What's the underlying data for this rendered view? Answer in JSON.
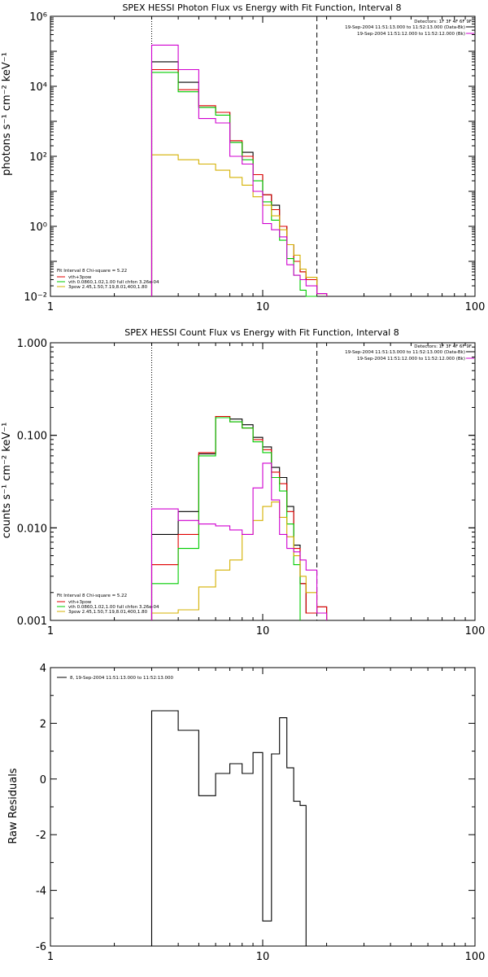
{
  "charts": [
    {
      "title": "SPEX HESSI Photon Flux vs Energy with Fit Function, Interval 8",
      "ylabel": "photons s⁻¹ cm⁻² keV⁻¹",
      "xticks": [
        "1",
        "10",
        "100"
      ],
      "yticks": [
        "10⁻²",
        "10⁰",
        "10²",
        "10⁴",
        "10⁶"
      ],
      "header": [
        "Detectors: 1F 3F 4F 6F 9F",
        "19-Sep-2004 11:51:13.000 to 11:52:13.000 (Data-Bk)",
        "19-Sep-2004 11:51:12.000 to 11:52:12.000 (Bk)"
      ],
      "legend": [
        "Fit Interval 8   Chi-square = 5.22",
        "vth+3pow",
        "vth 0.0860,1.02,1.00  full chfon 3.26e-04",
        "3pow 2.45,1.50,7.19,8.01,400,1.80"
      ]
    },
    {
      "title": "SPEX HESSI Count Flux vs Energy with Fit Function, Interval 8",
      "ylabel": "counts s⁻¹ cm⁻² keV⁻¹",
      "xticks": [
        "1",
        "10",
        "100"
      ],
      "yticks": [
        "0.001",
        "0.010",
        "0.100",
        "1.000"
      ],
      "header": [
        "Detectors: 1F 3F 4F 6F 9F",
        "19-Sep-2004 11:51:13.000 to 11:52:13.000 (Data-Bk)",
        "19-Sep-2004 11:51:12.000 to 11:52:12.000 (Bk)"
      ],
      "legend": [
        "Fit Interval 8   Chi-square = 5.22",
        "vth+3pow",
        "vth 0.0860,1.02,1.00  full chfon 3.26e-04",
        "3pow 2.45,1.50,7.19,8.01,400,1.80"
      ]
    },
    {
      "title": "",
      "ylabel": "Raw Residuals",
      "xticks": [
        "1",
        "10",
        "100"
      ],
      "yticks": [
        "-6",
        "-4",
        "-2",
        "0",
        "2",
        "4"
      ],
      "legend": [
        "8, 19-Sep-2004 11:51:13.000 to 11:52:13.000"
      ]
    }
  ],
  "colors": {
    "data": "#000000",
    "total": "#e00000",
    "thermal": "#00cc00",
    "nonthermal": "#d4b000",
    "background": "#d000d0"
  },
  "chart_data": [
    {
      "type": "line",
      "xscale": "log",
      "yscale": "log",
      "xlim": [
        1,
        100
      ],
      "ylim": [
        0.01,
        1000000
      ],
      "vlines": [
        {
          "x": 3,
          "style": "dotted"
        },
        {
          "x": 18,
          "style": "dashed"
        }
      ],
      "x_edges": [
        3,
        4,
        5,
        6,
        7,
        8,
        9,
        10,
        11,
        12,
        13,
        14,
        15,
        16,
        18,
        20
      ],
      "series": [
        {
          "name": "data",
          "color": "#000000",
          "values": [
            50000,
            13000,
            2500,
            1800,
            250,
            130,
            30,
            8,
            4,
            1,
            0.3,
            0.1,
            0.05,
            0.03,
            0.012
          ]
        },
        {
          "name": "vth+3pow",
          "color": "#e00000",
          "values": [
            30000,
            8000,
            2800,
            1800,
            280,
            100,
            30,
            8,
            3,
            1,
            0.3,
            0.1,
            0.05,
            0.03,
            0.012
          ]
        },
        {
          "name": "vth",
          "color": "#00cc00",
          "values": [
            25000,
            7000,
            2500,
            1500,
            250,
            80,
            20,
            5,
            1.5,
            0.4,
            0.12,
            0.04,
            0.015,
            0.005
          ]
        },
        {
          "name": "3pow",
          "color": "#d4b000",
          "values": [
            110,
            80,
            60,
            40,
            25,
            15,
            7,
            4,
            2,
            0.8,
            0.3,
            0.15,
            0.06,
            0.035,
            0.012
          ]
        },
        {
          "name": "background",
          "color": "#d000d0",
          "values": [
            150000,
            30000,
            1200,
            900,
            100,
            60,
            10,
            1.2,
            0.8,
            0.5,
            0.08,
            0.04,
            0.03,
            0.02,
            0.012
          ]
        }
      ]
    },
    {
      "type": "line",
      "xscale": "log",
      "yscale": "log",
      "xlim": [
        1,
        100
      ],
      "ylim": [
        0.001,
        1
      ],
      "vlines": [
        {
          "x": 3,
          "style": "dotted"
        },
        {
          "x": 18,
          "style": "dashed"
        }
      ],
      "x_edges": [
        3,
        4,
        5,
        6,
        7,
        8,
        9,
        10,
        11,
        12,
        13,
        14,
        15,
        16,
        18,
        20
      ],
      "series": [
        {
          "name": "data",
          "color": "#000000",
          "values": [
            0.0085,
            0.015,
            0.063,
            0.16,
            0.15,
            0.13,
            0.095,
            0.075,
            0.045,
            0.035,
            0.017,
            0.0065,
            0.0025,
            0.0012,
            0.0014
          ]
        },
        {
          "name": "vth+3pow",
          "color": "#e00000",
          "values": [
            0.004,
            0.0085,
            0.065,
            0.16,
            0.14,
            0.12,
            0.09,
            0.07,
            0.04,
            0.03,
            0.015,
            0.006,
            0.0025,
            0.0012,
            0.0014
          ]
        },
        {
          "name": "vth",
          "color": "#00cc00",
          "values": [
            0.0025,
            0.006,
            0.06,
            0.155,
            0.14,
            0.12,
            0.085,
            0.065,
            0.035,
            0.025,
            0.011,
            0.004
          ]
        },
        {
          "name": "3pow",
          "color": "#d4b000",
          "values": [
            0.0012,
            0.0013,
            0.0023,
            0.0035,
            0.0045,
            0.0085,
            0.012,
            0.017,
            0.019,
            0.013,
            0.008,
            0.005,
            0.003,
            0.002,
            0.0012
          ]
        },
        {
          "name": "background",
          "color": "#d000d0",
          "values": [
            0.016,
            0.012,
            0.011,
            0.0105,
            0.0095,
            0.0085,
            0.027,
            0.05,
            0.02,
            0.0085,
            0.006,
            0.0055,
            0.0045,
            0.0035,
            0.0012
          ]
        }
      ]
    },
    {
      "type": "line",
      "xscale": "log",
      "yscale": "linear",
      "xlim": [
        1,
        100
      ],
      "ylim": [
        -6,
        4
      ],
      "x_edges": [
        3,
        4,
        5,
        6,
        7,
        8,
        9,
        10,
        11,
        12,
        13,
        14,
        15,
        16,
        18
      ],
      "series": [
        {
          "name": "8, 19-Sep-2004 11:51:13.000 to 11:52:13.000",
          "color": "#000000",
          "values": [
            2.45,
            1.75,
            -0.6,
            0.2,
            0.55,
            0.2,
            0.95,
            -5.1,
            0.9,
            2.2,
            0.4,
            -0.8,
            -0.95
          ]
        }
      ]
    }
  ]
}
